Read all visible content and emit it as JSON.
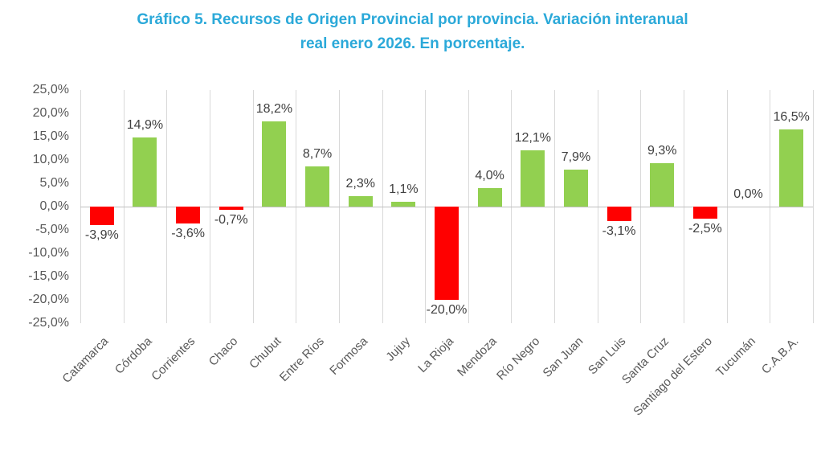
{
  "chart_data": {
    "type": "bar",
    "title": "Gráfico 5. Recursos de Origen Provincial por provincia. Variación interanual real enero 2026. En porcentaje.",
    "title_lines": [
      "Gráfico 5. Recursos de Origen Provincial por provincia. Variación interanual",
      "real enero 2026. En porcentaje."
    ],
    "categories": [
      "Catamarca",
      "Córdoba",
      "Corrientes",
      "Chaco",
      "Chubut",
      "Entre Ríos",
      "Formosa",
      "Jujuy",
      "La Rioja",
      "Mendoza",
      "Río Negro",
      "San Juan",
      "San Luis",
      "Santa Cruz",
      "Santiago del Estero",
      "Tucumán",
      "C.A.B.A."
    ],
    "values": [
      -3.9,
      14.9,
      -3.6,
      -0.7,
      18.2,
      8.7,
      2.3,
      1.1,
      -20.0,
      4.0,
      12.1,
      7.9,
      -3.1,
      9.3,
      -2.5,
      0.0,
      16.5
    ],
    "data_labels": [
      "-3,9%",
      "14,9%",
      "-3,6%",
      "-0,7%",
      "18,2%",
      "8,7%",
      "2,3%",
      "1,1%",
      "-20,0%",
      "4,0%",
      "12,1%",
      "7,9%",
      "-3,1%",
      "9,3%",
      "-2,5%",
      "0,0%",
      "16,5%"
    ],
    "xlabel": "",
    "ylabel": "",
    "ylim": [
      -25,
      25
    ],
    "ytick_step": 5,
    "ytick_labels": [
      "25,0%",
      "20,0%",
      "15,0%",
      "10,0%",
      "5,0%",
      "0,0%",
      "-5,0%",
      "-10,0%",
      "-15,0%",
      "-20,0%",
      "-25,0%"
    ],
    "grid": "vertical-only",
    "legend": "none",
    "colors": {
      "positive": "#92D050",
      "negative": "#FF0000",
      "title": "#2BA9D9",
      "axis_text": "#595959",
      "data_label": "#404040",
      "gridline": "#D9D9D9",
      "zero_line": "#BFBFBF"
    }
  }
}
